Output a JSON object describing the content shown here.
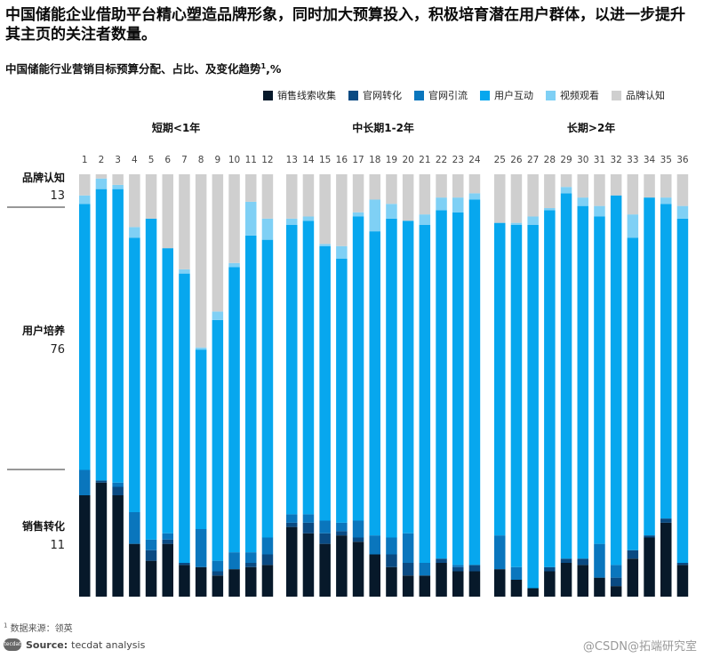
{
  "headline": "中国储能企业借助平台精心塑造品牌形象，同时加大预算投入，积极培育潜在用户群体，以进一步提升其主页的关注者数量。",
  "subtitle": "中国储能行业营销目标预算分配、占比、及变化趋势",
  "subtitle_sup": "1",
  "subtitle_unit": ",%",
  "footnote_mark": "1",
  "footnote": "数据来源：领英",
  "source_logo": "tecdat",
  "source_label": "Source:",
  "source_text": "tecdat analysis",
  "watermark": "@CSDN@拓端研究室",
  "colors": {
    "销售线索收集": "#07192a",
    "官网转化": "#0a4a82",
    "官网引流": "#0a76bd",
    "用户互动": "#07a7ee",
    "视频观看": "#7fd0f5",
    "品牌认知": "#cfcfcf"
  },
  "chart_data": {
    "type": "bar",
    "stacked": true,
    "normalized_to": 100,
    "title": "中国储能行业营销目标预算分配、占比、及变化趋势",
    "unit": "%",
    "legend_position": "top-right",
    "series_order": [
      "销售线索收集",
      "官网转化",
      "官网引流",
      "用户互动",
      "视频观看",
      "品牌认知"
    ],
    "groups": [
      {
        "label": "短期<1年",
        "categories": [
          "1",
          "2",
          "3",
          "4",
          "5",
          "6",
          "7",
          "8",
          "9",
          "10",
          "11",
          "12"
        ]
      },
      {
        "label": "中长期1-2年",
        "categories": [
          "13",
          "14",
          "15",
          "16",
          "17",
          "18",
          "19",
          "20",
          "21",
          "22",
          "23",
          "24"
        ]
      },
      {
        "label": "长期>2年",
        "categories": [
          "25",
          "26",
          "27",
          "28",
          "29",
          "30",
          "31",
          "32",
          "33",
          "34",
          "35",
          "36"
        ]
      }
    ],
    "bars": [
      {
        "label": "1",
        "values": {
          "销售线索收集": 24,
          "官网转化": 0,
          "官网引流": 6,
          "用户互动": 63,
          "视频观看": 2,
          "品牌认知": 5
        }
      },
      {
        "label": "2",
        "values": {
          "销售线索收集": 27,
          "官网转化": 0.5,
          "官网引流": 0,
          "用户互动": 69,
          "视频观看": 2.5,
          "品牌认知": 1
        }
      },
      {
        "label": "3",
        "values": {
          "销售线索收集": 24,
          "官网转化": 2,
          "官网引流": 1,
          "用户互动": 69.5,
          "视频观看": 1,
          "品牌认知": 2.5
        }
      },
      {
        "label": "4",
        "values": {
          "销售线索收集": 12.5,
          "官网转化": 0,
          "官网引流": 7.5,
          "用户互动": 65,
          "视频观看": 2.5,
          "品牌认知": 12.5
        }
      },
      {
        "label": "5",
        "values": {
          "销售线索收集": 8.5,
          "官网转化": 2.5,
          "官网引流": 2.5,
          "用户互动": 76,
          "视频观看": 0,
          "品牌认知": 10.5
        }
      },
      {
        "label": "6",
        "values": {
          "销售线索收集": 12.5,
          "官网转化": 1,
          "官网引流": 1.5,
          "用户互动": 67.5,
          "视频观看": 0,
          "品牌认知": 17.5
        }
      },
      {
        "label": "7",
        "values": {
          "销售线索收集": 7.5,
          "官网转化": 0.5,
          "官网引流": 0,
          "用户互动": 68.5,
          "视频观看": 1,
          "品牌认知": 22.5
        }
      },
      {
        "label": "8",
        "values": {
          "销售线索收集": 7,
          "官网转化": 0,
          "官网引流": 9,
          "用户互动": 42.5,
          "视频观看": 0.5,
          "品牌认知": 41
        }
      },
      {
        "label": "9",
        "values": {
          "销售线索收集": 5,
          "官网转化": 1,
          "官网引流": 2.5,
          "用户互动": 57,
          "视频观看": 2,
          "品牌认知": 32.5
        }
      },
      {
        "label": "10",
        "values": {
          "销售线索收集": 6.5,
          "官网转化": 0,
          "官网引流": 4,
          "用户互动": 67.5,
          "视频观看": 1,
          "品牌认知": 21
        }
      },
      {
        "label": "11",
        "values": {
          "销售线索收集": 7,
          "官网转化": 1,
          "官网引流": 2.5,
          "用户互动": 75,
          "视频观看": 8,
          "品牌认知": 6.5
        }
      },
      {
        "label": "12",
        "values": {
          "销售线索收集": 7.5,
          "官网转化": 2.5,
          "官网引流": 4,
          "用户互动": 70.5,
          "视频观看": 5,
          "品牌认知": 10.5
        }
      },
      {
        "label": "13",
        "values": {
          "销售线索收集": 16.5,
          "官网转化": 1,
          "官网引流": 2,
          "用户互动": 68.5,
          "视频观看": 1.5,
          "品牌认知": 10.5
        }
      },
      {
        "label": "14",
        "values": {
          "销售线索收集": 15,
          "官网转化": 2.5,
          "官网引流": 2,
          "用户互动": 69.5,
          "视频观看": 1,
          "品牌认知": 10
        }
      },
      {
        "label": "15",
        "values": {
          "销售线索收集": 12.5,
          "官网转化": 2.5,
          "官网引流": 3,
          "用户互动": 65,
          "视频观看": 0.5,
          "品牌认知": 16.5
        }
      },
      {
        "label": "16",
        "values": {
          "销售线索收集": 14.5,
          "官网转化": 1,
          "官网引流": 2,
          "用户互动": 62.5,
          "视频观看": 3,
          "品牌认知": 17
        }
      },
      {
        "label": "17",
        "values": {
          "销售线索收集": 13,
          "官网转化": 1,
          "官网引流": 4,
          "用户互动": 72,
          "视频观看": 1,
          "品牌认知": 9
        }
      },
      {
        "label": "18",
        "values": {
          "销售线索收集": 10,
          "官网转化": 0,
          "官网引流": 4.5,
          "用户互动": 72,
          "视频观看": 7.5,
          "品牌认知": 6
        }
      },
      {
        "label": "19",
        "values": {
          "销售线索收集": 7,
          "官网转化": 3,
          "官网引流": 4,
          "用户互动": 75.5,
          "视频观看": 3.5,
          "品牌认知": 7
        }
      },
      {
        "label": "20",
        "values": {
          "销售线索收集": 5,
          "官网转化": 3,
          "官网引流": 7,
          "用户互动": 74,
          "视频观看": 0,
          "品牌认知": 11
        }
      },
      {
        "label": "21",
        "values": {
          "销售线索收集": 5,
          "官网转化": 0,
          "官网引流": 3,
          "用户互动": 80,
          "视频观看": 2.5,
          "品牌认知": 9.5
        }
      },
      {
        "label": "22",
        "values": {
          "销售线索收集": 8,
          "官网转化": 1,
          "官网引流": 0,
          "用户互动": 82.5,
          "视频观看": 3,
          "品牌认知": 5.5
        }
      },
      {
        "label": "23",
        "values": {
          "销售线索收集": 6,
          "官网转化": 1,
          "官网引流": 0.5,
          "用户互动": 83.5,
          "视频观看": 3.5,
          "品牌认知": 5.5
        }
      },
      {
        "label": "24",
        "values": {
          "销售线索收集": 6,
          "官网转化": 1.5,
          "官网引流": 0,
          "用户互动": 86.5,
          "视频观看": 1.5,
          "品牌认知": 4.5
        }
      },
      {
        "label": "25",
        "values": {
          "销售线索收集": 6.5,
          "官网转化": 0,
          "官网引流": 8,
          "用户互动": 74,
          "视频观看": 0,
          "品牌认知": 11.5
        }
      },
      {
        "label": "26",
        "values": {
          "销售线索收集": 4,
          "官网转化": 0,
          "官网引流": 3,
          "用户互动": 81,
          "视频观看": 0.5,
          "品牌认知": 11.5
        }
      },
      {
        "label": "27",
        "values": {
          "销售线索收集": 2,
          "官网转化": 0,
          "官网引流": 0,
          "用户互动": 86,
          "视频观看": 2,
          "品牌认知": 10
        }
      },
      {
        "label": "28",
        "values": {
          "销售线索收集": 6,
          "官网转化": 1,
          "官网引流": 0,
          "用户互动": 84.5,
          "视频观看": 0.5,
          "品牌认知": 8
        }
      },
      {
        "label": "29",
        "values": {
          "销售线索收集": 8,
          "官网转化": 1,
          "官网引流": 0,
          "用户互动": 86.5,
          "视频观看": 1.5,
          "品牌认知": 3
        }
      },
      {
        "label": "30",
        "values": {
          "销售线索收集": 7.5,
          "官网转化": 1.5,
          "官网引流": 0,
          "用户互动": 83.5,
          "视频观看": 2,
          "品牌认知": 5.5
        }
      },
      {
        "label": "31",
        "values": {
          "销售线索收集": 4.5,
          "官网转化": 0,
          "官网引流": 8,
          "用户互动": 77.5,
          "视频观看": 2.5,
          "品牌认知": 7.5
        }
      },
      {
        "label": "32",
        "values": {
          "销售线索收集": 2.5,
          "官网转化": 2,
          "官网引流": 3,
          "用户互动": 87.5,
          "视频观看": 0,
          "品牌认知": 5
        }
      },
      {
        "label": "33",
        "values": {
          "销售线索收集": 9,
          "官网转化": 2,
          "官网引流": 0,
          "用户互动": 74,
          "视频观看": 5.5,
          "品牌认知": 9.5
        }
      },
      {
        "label": "34",
        "values": {
          "销售线索收集": 14,
          "官网转化": 0.5,
          "官网引流": 0,
          "用户互动": 80,
          "视频观看": 0,
          "品牌认知": 5.5
        }
      },
      {
        "label": "35",
        "values": {
          "销售线索收集": 17.5,
          "官网转化": 1,
          "官网引流": 0,
          "用户互动": 74.5,
          "视频观看": 1.5,
          "品牌认知": 5.5
        }
      },
      {
        "label": "36",
        "values": {
          "销售线索收集": 7.5,
          "官网转化": 0.5,
          "官网引流": 0,
          "用户互动": 81.5,
          "视频观看": 3,
          "品牌认知": 7.5
        }
      }
    ],
    "side_labels": [
      {
        "label": "品牌认知",
        "value": "13"
      },
      {
        "label": "用户培养",
        "value": "76"
      },
      {
        "label": "销售转化",
        "value": "11"
      }
    ]
  }
}
